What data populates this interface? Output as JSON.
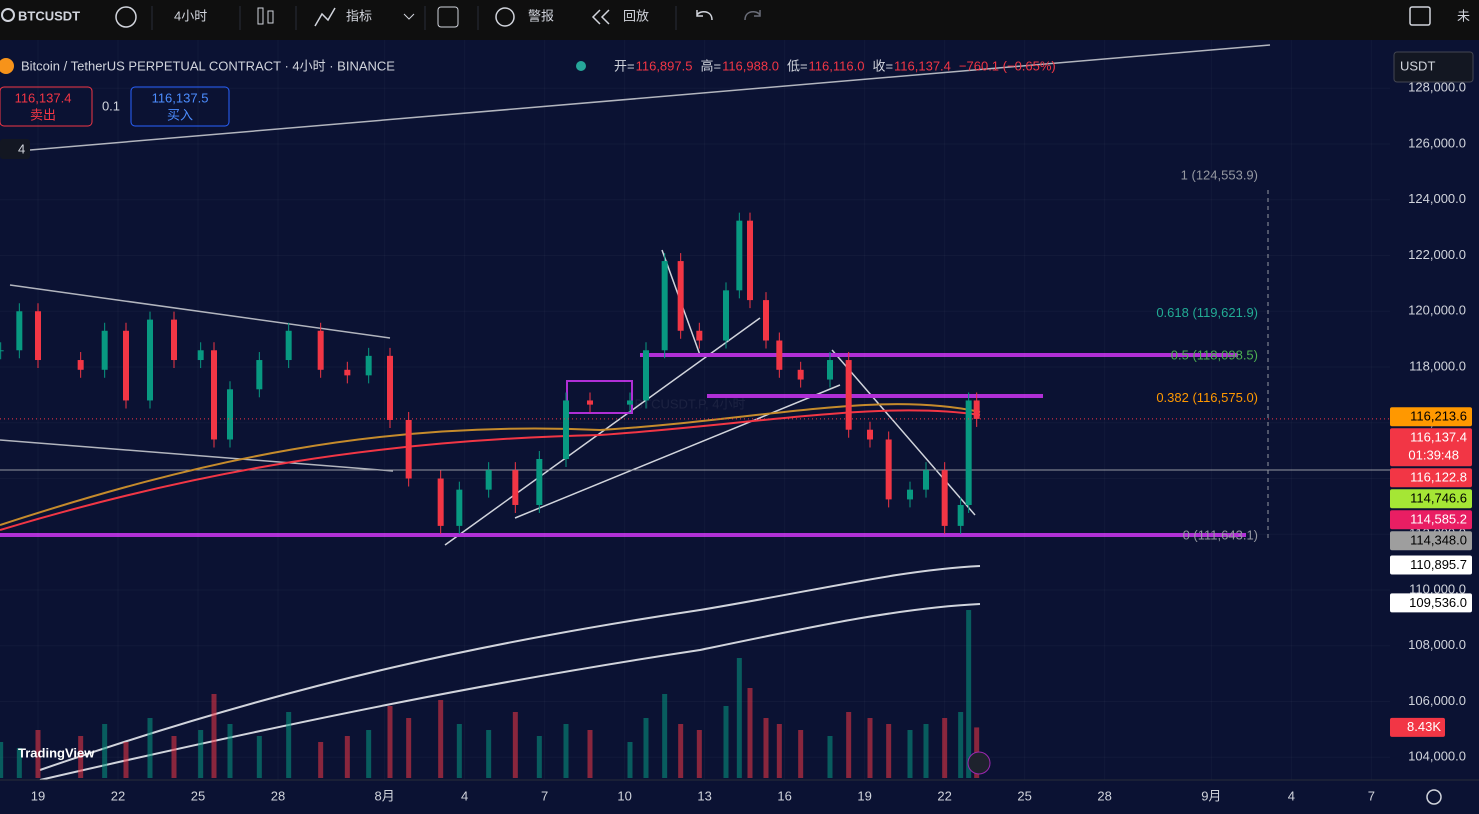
{
  "toolbar": {
    "symbol": "BTCUSDT",
    "interval": "4小时",
    "indicators": "指标",
    "alert": "警报",
    "replay": "回放",
    "more": "未"
  },
  "legend": {
    "title": "Bitcoin / TetherUS PERPETUAL CONTRACT · 4小时 · BINANCE",
    "fields": [
      {
        "label": "开=",
        "value": "116,897.5"
      },
      {
        "label": "高=",
        "value": "116,988.0"
      },
      {
        "label": "低=",
        "value": "116,116.0"
      },
      {
        "label": "收=",
        "value": "116,137.4"
      }
    ],
    "change": "−760.1 (−0.65%)"
  },
  "order": {
    "sell_price": "116,137.4",
    "sell": "卖出",
    "quantity": "0.1",
    "buy_price": "116,137.5",
    "buy": "买入"
  },
  "currency": "USDT",
  "collapse": "4",
  "watermark": "BTCUSDT.P, 4小时",
  "logo": "TradingView",
  "chart_data": {
    "type": "candlestick",
    "up_color": "#089981",
    "down_color": "#f23645",
    "x": [
      -1.4,
      -0.7,
      0,
      1.6,
      2.5,
      3.3,
      4.2,
      5.1,
      6.1,
      6.6,
      7.2,
      8.3,
      9.4,
      10.6,
      11.6,
      12.4,
      13.2,
      13.9,
      15.1,
      15.8,
      16.9,
      17.9,
      18.8,
      19.8,
      20.7,
      22.2,
      22.8,
      23.5,
      24.1,
      24.8,
      25.8,
      26.3,
      26.7,
      27.3,
      27.8,
      28.6,
      29.7,
      30.4,
      31.2,
      31.9,
      32.7,
      33.3,
      34.0,
      34.6,
      34.9,
      35.2
    ],
    "values": [
      118600,
      120000,
      118250,
      117900,
      119300,
      116800,
      119700,
      118250,
      118600,
      115400,
      117200,
      118250,
      119300,
      117900,
      117700,
      118400,
      116100,
      114000,
      112300,
      113600,
      114300,
      113050,
      114700,
      116800,
      116650,
      116800,
      118600,
      121800,
      119300,
      118950,
      120750,
      123250,
      120400,
      118950,
      117900,
      117550,
      118250,
      115750,
      115400,
      113250,
      113600,
      114300,
      112300,
      113050,
      116800,
      116137.4
    ],
    "volume": [
      6,
      5,
      8,
      7,
      9,
      6,
      10,
      7,
      8,
      14,
      9,
      7,
      11,
      6,
      7,
      8,
      12,
      10,
      13,
      9,
      8,
      11,
      7,
      9,
      8,
      6,
      10,
      14,
      9,
      8,
      12,
      20,
      15,
      10,
      9,
      8,
      7,
      11,
      10,
      9,
      8,
      9,
      10,
      11,
      28,
      8.43
    ],
    "volume_lim": [
      0,
      30
    ],
    "volume_tag": {
      "value": 8.43,
      "label": "8.43K",
      "color": "#f23645"
    },
    "xlim": [
      -1.425,
      50.7
    ],
    "xticks": [
      {
        "value": 0,
        "label": "19"
      },
      {
        "value": 3,
        "label": "22"
      },
      {
        "value": 6,
        "label": "25"
      },
      {
        "value": 9,
        "label": "28"
      },
      {
        "value": 13,
        "label": "8月"
      },
      {
        "value": 16,
        "label": "4"
      },
      {
        "value": 19,
        "label": "7"
      },
      {
        "value": 22,
        "label": "10"
      },
      {
        "value": 25,
        "label": "13"
      },
      {
        "value": 28,
        "label": "16"
      },
      {
        "value": 31,
        "label": "19"
      },
      {
        "value": 34,
        "label": "22"
      },
      {
        "value": 37,
        "label": "25"
      },
      {
        "value": 40,
        "label": "28"
      },
      {
        "value": 44,
        "label": "9月"
      },
      {
        "value": 47,
        "label": "4"
      },
      {
        "value": 50,
        "label": "7"
      }
    ],
    "ylim": [
      103184,
      129731
    ],
    "yticks": [
      {
        "value": 128000,
        "label": "128,000.0"
      },
      {
        "value": 126000,
        "label": "126,000.0"
      },
      {
        "value": 124000,
        "label": "124,000.0"
      },
      {
        "value": 122000,
        "label": "122,000.0"
      },
      {
        "value": 120000,
        "label": "120,000.0"
      },
      {
        "value": 118000,
        "label": "118,000.0"
      },
      {
        "value": 116000,
        "label": "116,000.0"
      },
      {
        "value": 114000,
        "label": "114,000.0"
      },
      {
        "value": 112000,
        "label": "112,000.0"
      },
      {
        "value": 110000,
        "label": "110,000.0"
      },
      {
        "value": 108000,
        "label": "108,000.0"
      },
      {
        "value": 106000,
        "label": "106,000.0"
      },
      {
        "value": 104000,
        "label": "104,000.0"
      }
    ],
    "price_tags": [
      {
        "value": 116213.6,
        "label": "116,213.6",
        "color": "#ff9800",
        "text_color": "#000000"
      },
      {
        "value": 116137.4,
        "label": "116,137.4",
        "countdown": "01:39:48",
        "color": "#f23645",
        "text_color": "#ffffff"
      },
      {
        "value": 116122.8,
        "label": "116,122.8",
        "color": "#f23645",
        "text_color": "#ffffff"
      },
      {
        "value": 114746.6,
        "label": "114,746.6",
        "color": "#a5e635",
        "text_color": "#000000"
      },
      {
        "value": 114585.2,
        "label": "114,585.2",
        "color": "#e91e63",
        "text_color": "#ffffff"
      },
      {
        "value": 114348.0,
        "label": "114,348.0",
        "color": "#9e9e9e",
        "text_color": "#000000"
      },
      {
        "value": 110895.7,
        "label": "110,895.7",
        "color": "#ffffff",
        "text_color": "#000000"
      },
      {
        "value": 109536.0,
        "label": "109,536.0",
        "color": "#ffffff",
        "text_color": "#000000"
      }
    ],
    "fib": [
      {
        "label": "1 (124,553.9)",
        "value": 124553.9,
        "color": "#9598a1"
      },
      {
        "label": "0.618 (119,621.9)",
        "value": 119621.9,
        "color": "#22ab94"
      },
      {
        "label": "0.5 (118,098.5)",
        "value": 118098.5,
        "color": "#4caf50"
      },
      {
        "label": "0.382 (116,575.0)",
        "value": 116575.0,
        "color": "#ff9800"
      },
      {
        "label": "0 (111,643.1)",
        "value": 111643.1,
        "color": "#9598a1"
      }
    ]
  }
}
